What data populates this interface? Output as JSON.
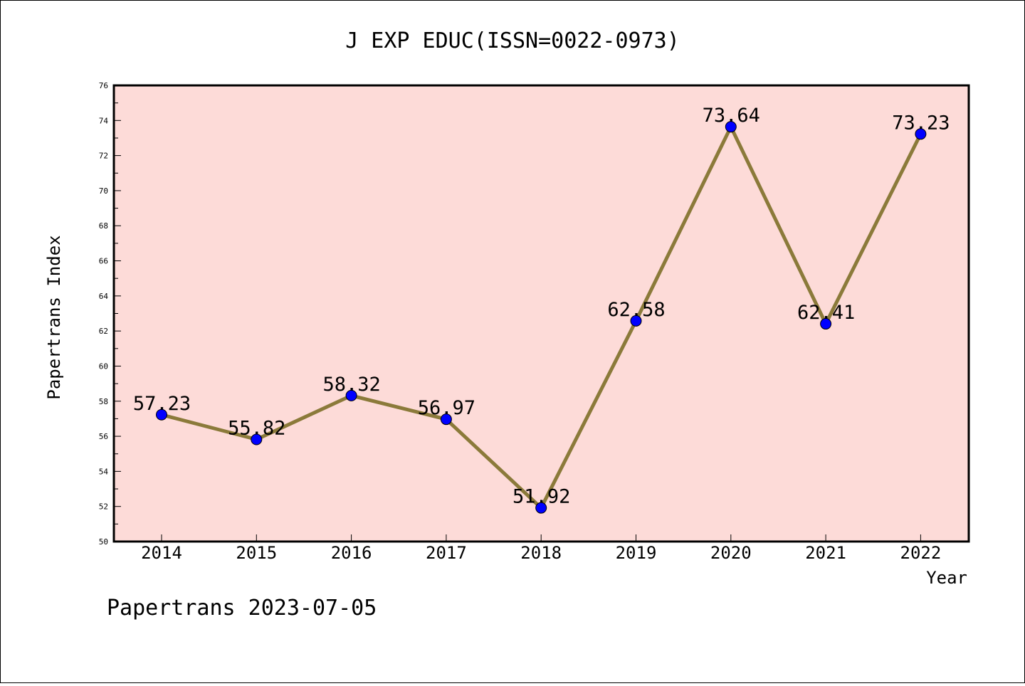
{
  "chart_data": {
    "type": "line",
    "title": "J EXP EDUC(ISSN=0022-0973)",
    "xlabel": "Year",
    "ylabel": "Papertrans Index",
    "footer": "Papertrans 2023-07-05",
    "categories": [
      "2014",
      "2015",
      "2016",
      "2017",
      "2018",
      "2019",
      "2020",
      "2021",
      "2022"
    ],
    "series": [
      {
        "values": [
          57.23,
          55.82,
          58.32,
          56.97,
          51.92,
          62.58,
          73.64,
          62.41,
          73.23
        ],
        "data_labels": [
          "57.23",
          "55.82",
          "58.32",
          "56.97",
          "51.92",
          "62.58",
          "73.64",
          "62.41",
          "73.23"
        ],
        "line_color": "#8b7a3a",
        "marker_color": "#0000ff"
      }
    ],
    "ylim": [
      50,
      76
    ],
    "yticks": [
      "50",
      "52",
      "54",
      "56",
      "58",
      "60",
      "62",
      "64",
      "66",
      "68",
      "70",
      "72",
      "74",
      "76"
    ],
    "grid": false,
    "legend": "none",
    "plot_background": "#fddbd8"
  }
}
